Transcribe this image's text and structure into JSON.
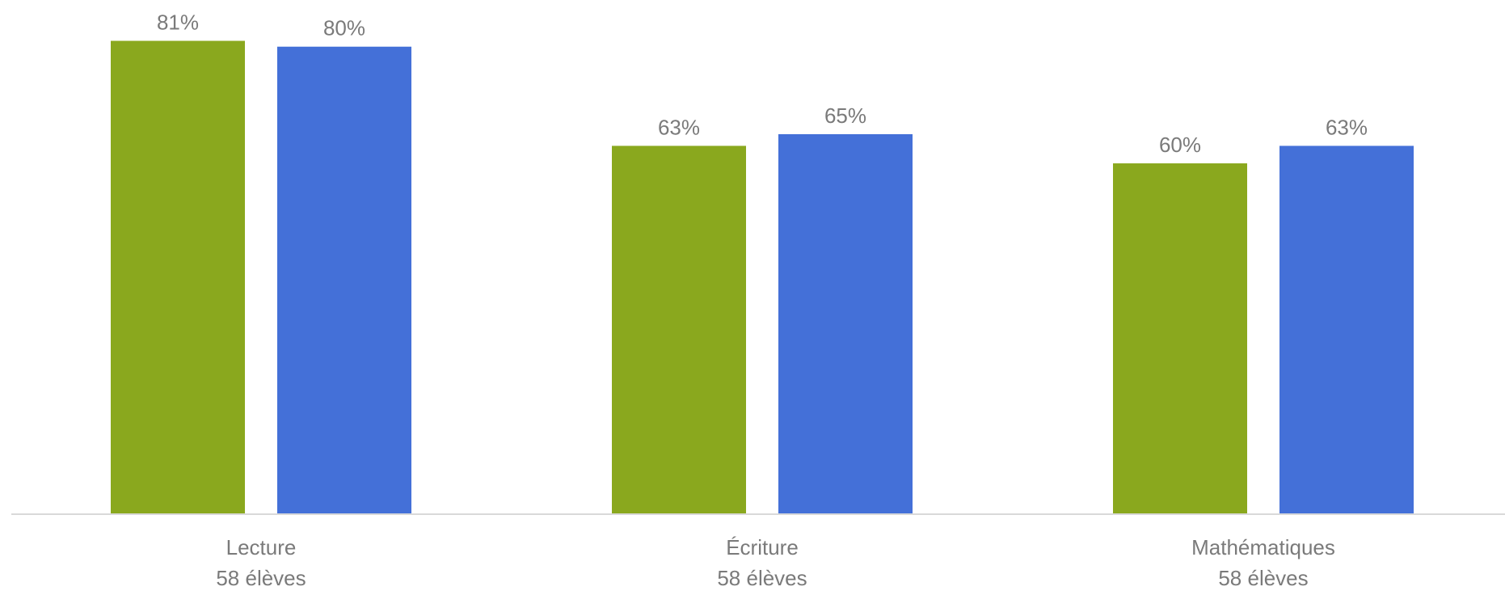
{
  "chart_data": {
    "type": "bar",
    "categories": [
      {
        "name": "Lecture",
        "sub": "58 élèves"
      },
      {
        "name": "Écriture",
        "sub": "58 élèves"
      },
      {
        "name": "Mathématiques",
        "sub": "58 élèves"
      }
    ],
    "series": [
      {
        "values": [
          81,
          63,
          60
        ],
        "labels": [
          "81%",
          "63%",
          "60%"
        ],
        "color": "#8AA81E"
      },
      {
        "values": [
          80,
          65,
          63
        ],
        "labels": [
          "80%",
          "65%",
          "63%"
        ],
        "color": "#4470D8"
      }
    ],
    "value_format": "percent",
    "ylim": [
      0,
      88
    ],
    "gridlines": false,
    "legend": "none"
  }
}
